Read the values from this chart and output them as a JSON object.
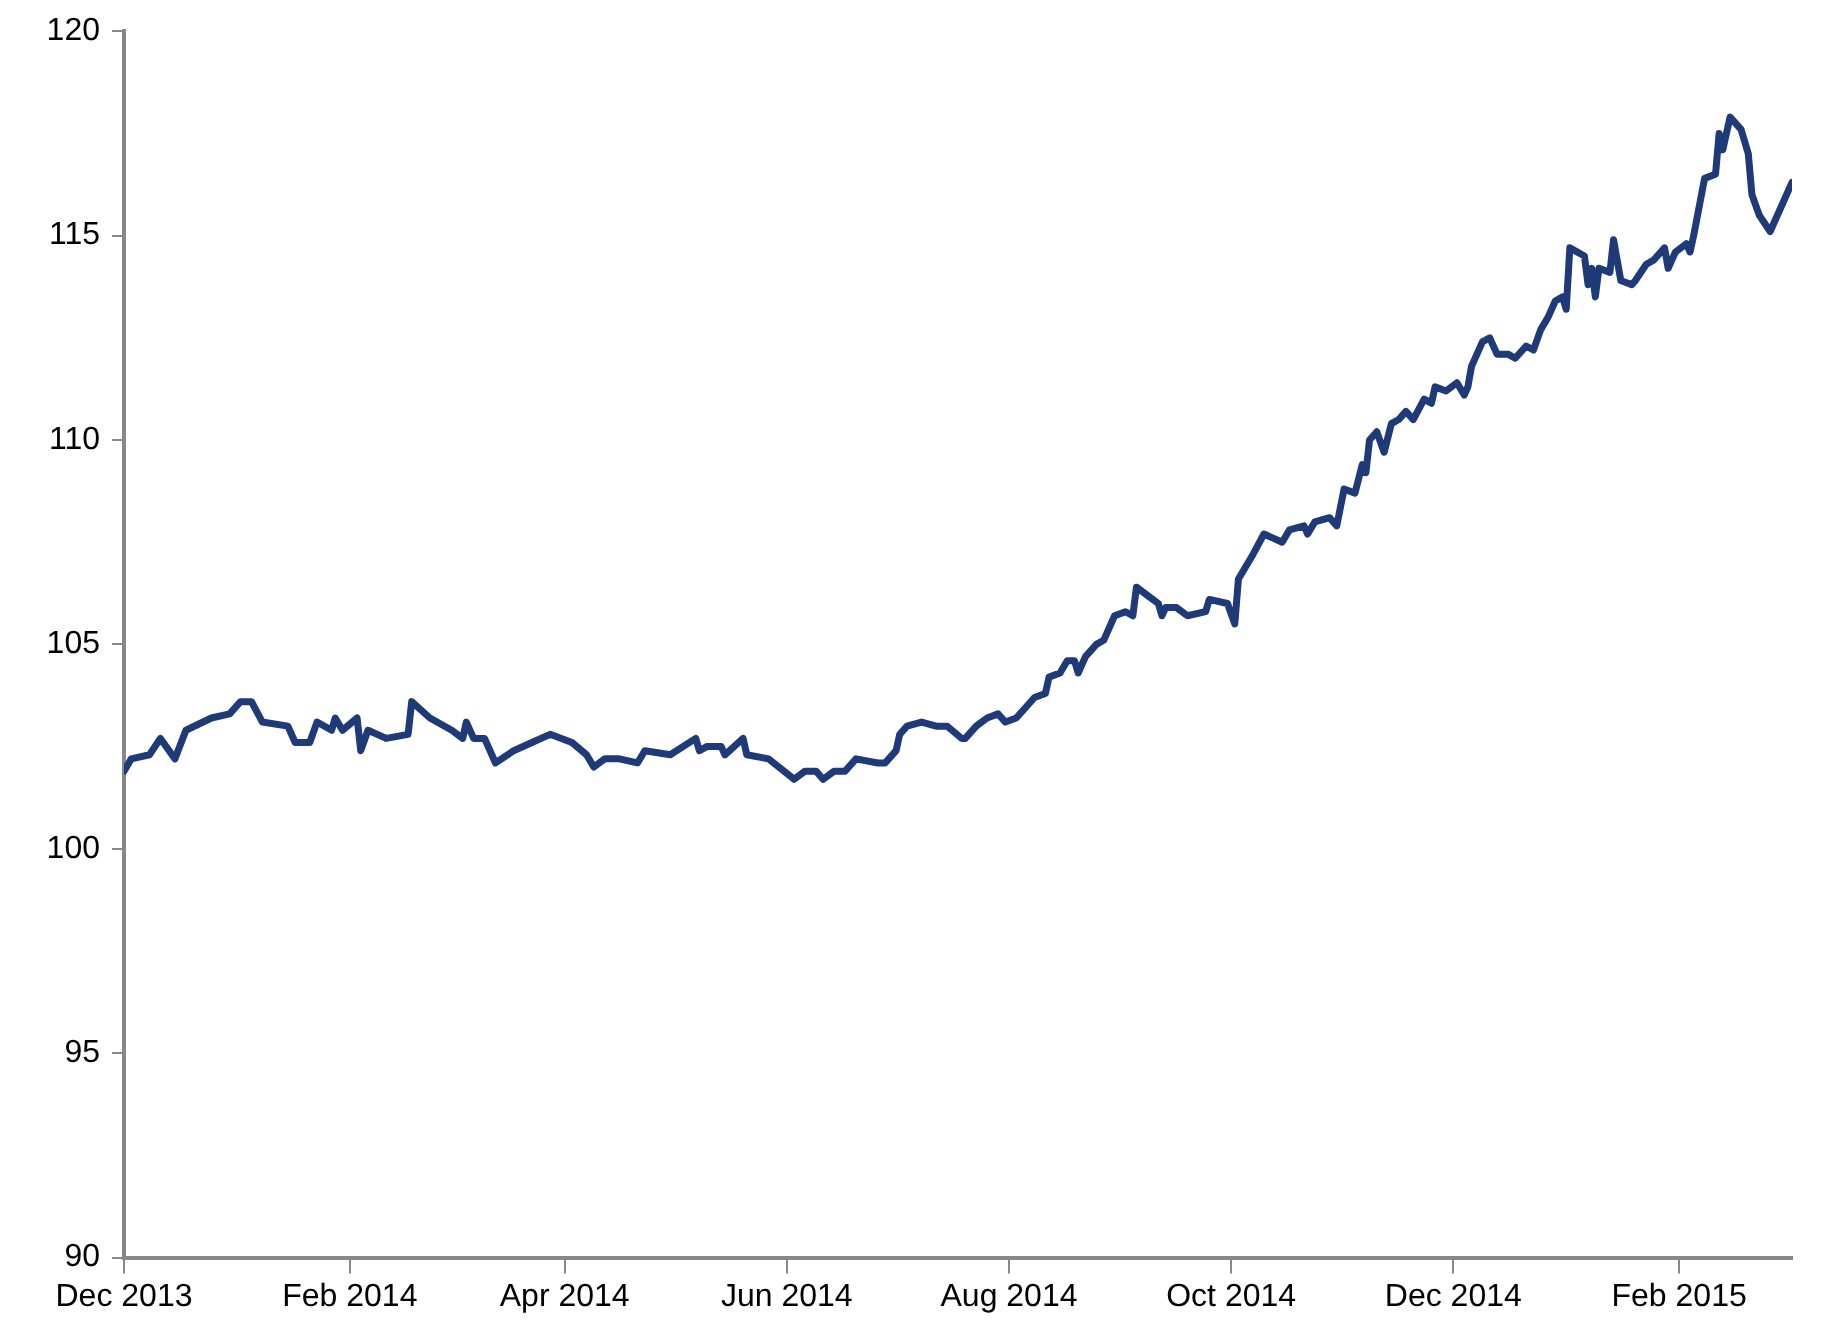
{
  "chart_data": {
    "type": "line",
    "grid": false,
    "legend": false,
    "marker": "none",
    "line_style": "solid",
    "xlim": [
      "2013-12-01",
      "2015-03-04"
    ],
    "xticks": [
      {
        "value": "2013-12-01",
        "label": "Dec 2013"
      },
      {
        "value": "2014-02-01",
        "label": "Feb 2014"
      },
      {
        "value": "2014-04-01",
        "label": "Apr 2014"
      },
      {
        "value": "2014-06-01",
        "label": "Jun 2014"
      },
      {
        "value": "2014-08-01",
        "label": "Aug 2014"
      },
      {
        "value": "2014-10-01",
        "label": "Oct 2014"
      },
      {
        "value": "2014-12-01",
        "label": "Dec 2014"
      },
      {
        "value": "2015-02-01",
        "label": "Feb 2015"
      }
    ],
    "ylim": [
      90,
      120
    ],
    "yticks": [
      90,
      95,
      100,
      105,
      110,
      115,
      120
    ],
    "x": [
      "2013-12-01",
      "2013-12-03",
      "2013-12-08",
      "2013-12-11",
      "2013-12-15",
      "2013-12-18",
      "2013-12-25",
      "2013-12-30",
      "2014-01-02",
      "2014-01-05",
      "2014-01-08",
      "2014-01-15",
      "2014-01-17",
      "2014-01-21",
      "2014-01-23",
      "2014-01-27",
      "2014-01-28",
      "2014-01-30",
      "2014-02-03",
      "2014-02-04",
      "2014-02-06",
      "2014-02-11",
      "2014-02-17",
      "2014-02-18",
      "2014-02-23",
      "2014-03-01",
      "2014-03-04",
      "2014-03-05",
      "2014-03-07",
      "2014-03-10",
      "2014-03-13",
      "2014-03-18",
      "2014-03-23",
      "2014-03-28",
      "2014-04-03",
      "2014-04-07",
      "2014-04-09",
      "2014-04-12",
      "2014-04-16",
      "2014-04-21",
      "2014-04-23",
      "2014-04-30",
      "2014-05-07",
      "2014-05-08",
      "2014-05-10",
      "2014-05-14",
      "2014-05-15",
      "2014-05-20",
      "2014-05-21",
      "2014-05-27",
      "2014-06-03",
      "2014-06-06",
      "2014-06-09",
      "2014-06-11",
      "2014-06-14",
      "2014-06-17",
      "2014-06-20",
      "2014-06-26",
      "2014-06-28",
      "2014-07-01",
      "2014-07-02",
      "2014-07-04",
      "2014-07-08",
      "2014-07-12",
      "2014-07-15",
      "2014-07-19",
      "2014-07-20",
      "2014-07-23",
      "2014-07-26",
      "2014-07-29",
      "2014-07-31",
      "2014-08-03",
      "2014-08-06",
      "2014-08-08",
      "2014-08-11",
      "2014-08-12",
      "2014-08-15",
      "2014-08-17",
      "2014-08-19",
      "2014-08-20",
      "2014-08-22",
      "2014-08-25",
      "2014-08-27",
      "2014-08-30",
      "2014-09-02",
      "2014-09-04",
      "2014-09-05",
      "2014-09-08",
      "2014-09-11",
      "2014-09-12",
      "2014-09-13",
      "2014-09-16",
      "2014-09-19",
      "2014-09-24",
      "2014-09-25",
      "2014-09-30",
      "2014-10-02",
      "2014-10-03",
      "2014-10-05",
      "2014-10-07",
      "2014-10-10",
      "2014-10-15",
      "2014-10-17",
      "2014-10-21",
      "2014-10-22",
      "2014-10-24",
      "2014-10-28",
      "2014-10-30",
      "2014-11-01",
      "2014-11-04",
      "2014-11-06",
      "2014-11-07",
      "2014-11-08",
      "2014-11-10",
      "2014-11-12",
      "2014-11-14",
      "2014-11-16",
      "2014-11-18",
      "2014-11-20",
      "2014-11-23",
      "2014-11-25",
      "2014-11-26",
      "2014-11-29",
      "2014-12-02",
      "2014-12-04",
      "2014-12-05",
      "2014-12-06",
      "2014-12-09",
      "2014-12-11",
      "2014-12-13",
      "2014-12-16",
      "2014-12-18",
      "2014-12-21",
      "2014-12-23",
      "2014-12-25",
      "2014-12-27",
      "2014-12-29",
      "2014-12-31",
      "2015-01-01",
      "2015-01-02",
      "2015-01-06",
      "2015-01-07",
      "2015-01-08",
      "2015-01-09",
      "2015-01-10",
      "2015-01-13",
      "2015-01-14",
      "2015-01-16",
      "2015-01-19",
      "2015-01-20",
      "2015-01-23",
      "2015-01-25",
      "2015-01-28",
      "2015-01-29",
      "2015-01-31",
      "2015-02-03",
      "2015-02-04",
      "2015-02-05",
      "2015-02-08",
      "2015-02-11",
      "2015-02-12",
      "2015-02-13",
      "2015-02-15",
      "2015-02-18",
      "2015-02-20",
      "2015-02-21",
      "2015-02-23",
      "2015-02-26",
      "2015-03-01",
      "2015-03-04"
    ],
    "series": [
      {
        "color": "#1f3a78",
        "values": [
          101.9,
          102.2,
          102.3,
          102.7,
          102.2,
          102.9,
          103.2,
          103.3,
          103.6,
          103.6,
          103.1,
          103.0,
          102.6,
          102.6,
          103.1,
          102.9,
          103.2,
          102.9,
          103.2,
          102.4,
          102.9,
          102.7,
          102.8,
          103.6,
          103.2,
          102.9,
          102.7,
          103.1,
          102.7,
          102.7,
          102.1,
          102.4,
          102.6,
          102.8,
          102.6,
          102.3,
          102.0,
          102.2,
          102.2,
          102.1,
          102.4,
          102.3,
          102.7,
          102.4,
          102.5,
          102.5,
          102.3,
          102.7,
          102.3,
          102.2,
          101.7,
          101.9,
          101.9,
          101.7,
          101.9,
          101.9,
          102.2,
          102.1,
          102.1,
          102.4,
          102.8,
          103.0,
          103.1,
          103.0,
          103.0,
          102.7,
          102.7,
          103.0,
          103.2,
          103.3,
          103.1,
          103.2,
          103.5,
          103.7,
          103.8,
          104.2,
          104.3,
          104.6,
          104.6,
          104.3,
          104.7,
          105.0,
          105.1,
          105.7,
          105.8,
          105.7,
          106.4,
          106.2,
          106.0,
          105.7,
          105.9,
          105.9,
          105.7,
          105.8,
          106.1,
          106.0,
          105.5,
          106.6,
          106.9,
          107.2,
          107.7,
          107.5,
          107.8,
          107.9,
          107.7,
          108.0,
          108.1,
          107.9,
          108.8,
          108.7,
          109.4,
          109.2,
          110.0,
          110.2,
          109.7,
          110.4,
          110.5,
          110.7,
          110.5,
          111.0,
          110.9,
          111.3,
          111.2,
          111.4,
          111.1,
          111.3,
          111.8,
          112.4,
          112.5,
          112.1,
          112.1,
          112.0,
          112.3,
          112.2,
          112.7,
          113.0,
          113.4,
          113.5,
          113.2,
          114.7,
          114.5,
          113.8,
          114.2,
          113.5,
          114.2,
          114.1,
          114.9,
          113.9,
          113.8,
          113.9,
          114.3,
          114.4,
          114.7,
          114.2,
          114.6,
          114.8,
          114.6,
          115.0,
          116.4,
          116.5,
          117.5,
          117.1,
          117.9,
          117.6,
          117.0,
          116.0,
          115.5,
          115.1,
          115.7,
          116.3
        ]
      }
    ]
  }
}
